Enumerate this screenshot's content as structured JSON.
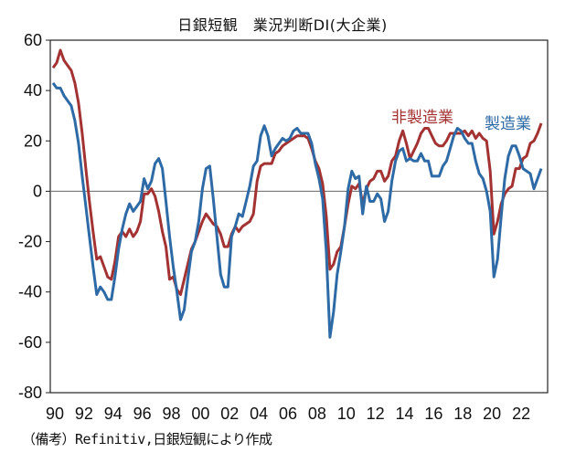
{
  "chart_data": {
    "type": "line",
    "title": "日銀短観　業況判断DI(大企業)",
    "frequency": "quarterly",
    "x_start": "1990Q1",
    "x_end": "2023Q3",
    "xlabel": "",
    "ylabel": "",
    "ylim": [
      -80,
      60
    ],
    "yticks": [
      60,
      40,
      20,
      0,
      -20,
      -40,
      -60,
      -80
    ],
    "xtick_labels": [
      "90",
      "92",
      "94",
      "96",
      "98",
      "00",
      "02",
      "04",
      "06",
      "08",
      "10",
      "12",
      "14",
      "16",
      "18",
      "20",
      "22"
    ],
    "grid": false,
    "zero_line": true,
    "series": [
      {
        "name": "非製造業",
        "color": "#a33232",
        "values": [
          49,
          51,
          56,
          52,
          50,
          48,
          43,
          35,
          23,
          9,
          -4,
          -16,
          -27,
          -26,
          -30,
          -34,
          -35,
          -28,
          -18,
          -16,
          -18,
          -15,
          -18,
          -16,
          -12,
          -1,
          -1,
          1,
          -2,
          -8,
          -16,
          -22,
          -35,
          -34,
          -39,
          -41,
          -35,
          -29,
          -23,
          -20,
          -16,
          -12,
          -9,
          -11,
          -13,
          -14,
          -17,
          -22,
          -22,
          -17,
          -14,
          -16,
          -14,
          -13,
          -12,
          -9,
          4,
          10,
          11,
          11,
          11,
          15,
          16,
          18,
          19,
          20,
          21,
          22,
          22,
          22,
          21,
          17,
          12,
          9,
          3,
          -10,
          -31,
          -29,
          -24,
          -22,
          -14,
          -5,
          2,
          1,
          3,
          -5,
          1,
          4,
          5,
          8,
          8,
          4,
          6,
          12,
          14,
          20,
          24,
          19,
          13,
          16,
          19,
          23,
          25,
          25,
          22,
          19,
          18,
          18,
          20,
          23,
          23,
          23,
          23,
          24,
          22,
          24,
          21,
          23,
          21,
          20,
          8,
          -17,
          -12,
          -5,
          -1,
          1,
          2,
          9,
          9,
          13,
          14,
          19,
          20,
          23,
          27
        ]
      },
      {
        "name": "製造業",
        "color": "#2e6aa5",
        "values": [
          43,
          41,
          41,
          38,
          36,
          34,
          28,
          19,
          6,
          -6,
          -18,
          -30,
          -41,
          -38,
          -40,
          -43,
          -43,
          -34,
          -23,
          -15,
          -9,
          -5,
          -8,
          -6,
          -4,
          5,
          1,
          4,
          11,
          13,
          9,
          -4,
          -18,
          -30,
          -40,
          -51,
          -47,
          -35,
          -24,
          -20,
          -12,
          1,
          9,
          10,
          -3,
          -18,
          -33,
          -38,
          -38,
          -18,
          -14,
          -9,
          -10,
          -4,
          2,
          10,
          12,
          22,
          26,
          22,
          14,
          17,
          19,
          21,
          20,
          21,
          24,
          25,
          23,
          23,
          23,
          19,
          11,
          5,
          -3,
          -24,
          -58,
          -48,
          -33,
          -24,
          -14,
          1,
          8,
          5,
          6,
          -9,
          2,
          -4,
          -4,
          -1,
          -3,
          -12,
          -8,
          4,
          12,
          16,
          17,
          12,
          13,
          12,
          12,
          15,
          12,
          12,
          6,
          6,
          6,
          10,
          12,
          17,
          22,
          25,
          24,
          21,
          19,
          19,
          12,
          7,
          5,
          0,
          -8,
          -34,
          -27,
          -10,
          5,
          14,
          18,
          18,
          14,
          9,
          8,
          7,
          1,
          5,
          9
        ]
      }
    ],
    "annotation_source": "（備考）Refinitiv,日銀短観により作成"
  }
}
